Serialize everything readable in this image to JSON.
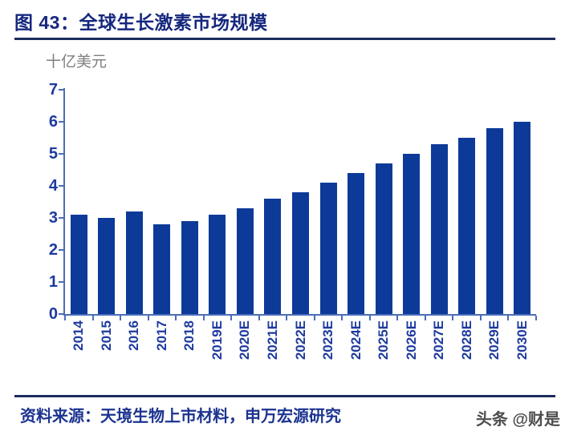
{
  "title": {
    "text": "图 43：全球生长激素市场规模"
  },
  "chart_data": {
    "type": "bar",
    "title": "全球生长激素市场规模",
    "unit_label": "十亿美元",
    "ylabel": "十亿美元",
    "xlabel": "",
    "categories": [
      "2014",
      "2015",
      "2016",
      "2017",
      "2018",
      "2019E",
      "2020E",
      "2021E",
      "2022E",
      "2023E",
      "2024E",
      "2025E",
      "2026E",
      "2027E",
      "2028E",
      "2029E",
      "2030E"
    ],
    "values": [
      3.1,
      3.0,
      3.2,
      2.8,
      2.9,
      3.1,
      3.3,
      3.6,
      3.8,
      4.1,
      4.4,
      4.7,
      5.0,
      5.3,
      5.5,
      5.8,
      6.0
    ],
    "ylim": [
      0,
      7
    ],
    "yticks": [
      0,
      1,
      2,
      3,
      4,
      5,
      6,
      7
    ],
    "grid": "off",
    "legend": "none",
    "bar_color": "#0d3a99",
    "axis_color": "#4a6db8",
    "tick_label_color": "#1e3a9e"
  },
  "footer": {
    "source_text": "资料来源：天境生物上市材料，申万宏源研究",
    "watermark": "头条 @财是"
  }
}
